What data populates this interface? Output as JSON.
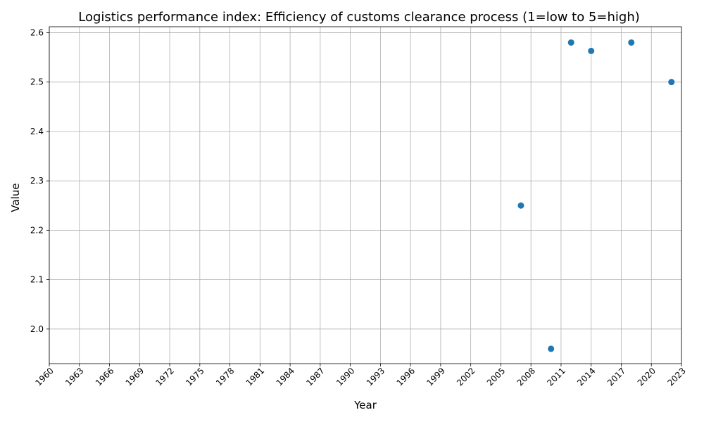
{
  "colors": {
    "point": "#1f77b4",
    "grid": "#b0b0b0",
    "axis": "#000000",
    "background": "#ffffff"
  },
  "chart_data": {
    "type": "scatter",
    "title": "Logistics performance index: Efficiency of customs clearance process (1=low to 5=high)",
    "xlabel": "Year",
    "ylabel": "Value",
    "xlim": [
      1960,
      2023
    ],
    "ylim": [
      1.93,
      2.612
    ],
    "x_ticks": [
      1960,
      1963,
      1966,
      1969,
      1972,
      1975,
      1978,
      1981,
      1984,
      1987,
      1990,
      1993,
      1996,
      1999,
      2002,
      2005,
      2008,
      2011,
      2014,
      2017,
      2020,
      2023
    ],
    "y_ticks": [
      2.0,
      2.1,
      2.2,
      2.3,
      2.4,
      2.5,
      2.6
    ],
    "x_tick_labels": [
      "1960",
      "1963",
      "1966",
      "1969",
      "1972",
      "1975",
      "1978",
      "1981",
      "1984",
      "1987",
      "1990",
      "1993",
      "1996",
      "1999",
      "2002",
      "2005",
      "2008",
      "2011",
      "2014",
      "2017",
      "2020",
      "2023"
    ],
    "y_tick_labels": [
      "2.0",
      "2.1",
      "2.2",
      "2.3",
      "2.4",
      "2.5",
      "2.6"
    ],
    "grid": true,
    "x_tick_rotation_deg": 45,
    "series": [
      {
        "x": [
          2007,
          2010,
          2012,
          2014,
          2018,
          2022
        ],
        "y": [
          2.25,
          1.96,
          2.58,
          2.563,
          2.58,
          2.5
        ]
      }
    ]
  }
}
